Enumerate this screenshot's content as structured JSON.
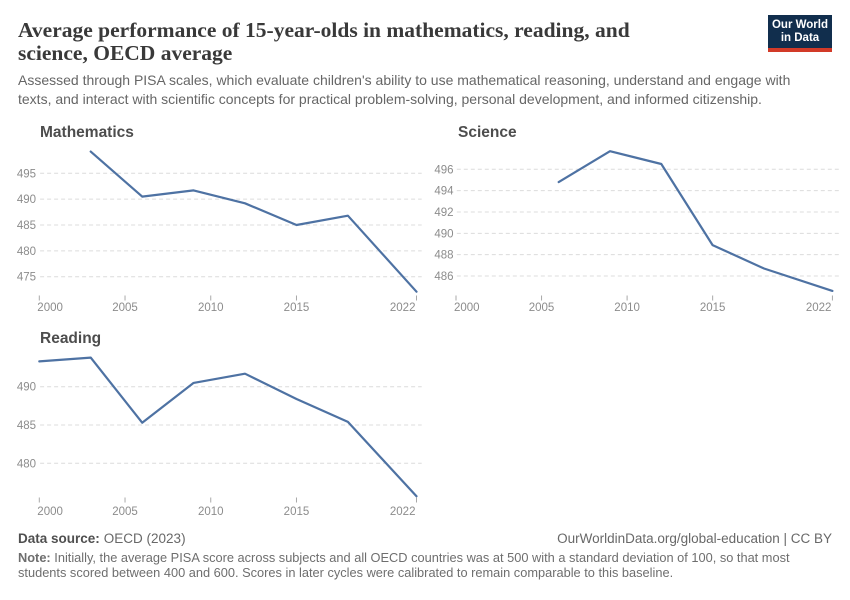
{
  "header": {
    "title": "Average performance of 15-year-olds in mathematics, reading, and science, OECD average",
    "subtitle": "Assessed through PISA scales, which evaluate children's ability to use mathematical reasoning, understand and engage with texts, and interact with scientific concepts for practical problem-solving, personal development, and informed citizenship.",
    "logo": {
      "line1": "Our World",
      "line2": "in Data",
      "bg_color": "#112E4D",
      "accent_color": "#D23A28"
    }
  },
  "chart_data": [
    {
      "type": "line",
      "title": "Mathematics",
      "x": [
        2003,
        2006,
        2009,
        2012,
        2015,
        2018,
        2022
      ],
      "values": [
        499.2,
        490.5,
        491.7,
        489.2,
        485.0,
        486.8,
        472.1
      ],
      "yticks": [
        495,
        490,
        485,
        480,
        475
      ],
      "xticks": [
        2000,
        2005,
        2010,
        2015,
        2022
      ],
      "xlim": [
        2000,
        2022.3
      ],
      "line_color": "#4e72a3"
    },
    {
      "type": "line",
      "title": "Science",
      "x": [
        2006,
        2009,
        2012,
        2015,
        2018,
        2022
      ],
      "values": [
        494.8,
        497.7,
        496.5,
        488.9,
        486.7,
        484.6
      ],
      "yticks": [
        496,
        494,
        492,
        490,
        488,
        486
      ],
      "xticks": [
        2000,
        2005,
        2010,
        2015,
        2022
      ],
      "xlim": [
        2000,
        2022.3
      ],
      "line_color": "#4e72a3"
    },
    {
      "type": "line",
      "title": "Reading",
      "x": [
        2000,
        2003,
        2006,
        2009,
        2012,
        2015,
        2018,
        2022
      ],
      "values": [
        493.3,
        493.8,
        485.3,
        490.5,
        491.7,
        488.4,
        485.4,
        475.7
      ],
      "yticks": [
        490,
        485,
        480
      ],
      "xticks": [
        2000,
        2005,
        2010,
        2015,
        2022
      ],
      "xlim": [
        2000,
        2022.3
      ],
      "line_color": "#4e72a3"
    }
  ],
  "footer": {
    "source_label": "Data source:",
    "source_value": "OECD (2023)",
    "link": "OurWorldinData.org/global-education | CC BY",
    "note_label": "Note:",
    "note_text": "Initially, the average PISA score across subjects and all OECD countries was at 500 with a standard deviation of 100, so that most students scored between 400 and 600. Scores in later cycles were calibrated to remain comparable to this baseline."
  }
}
